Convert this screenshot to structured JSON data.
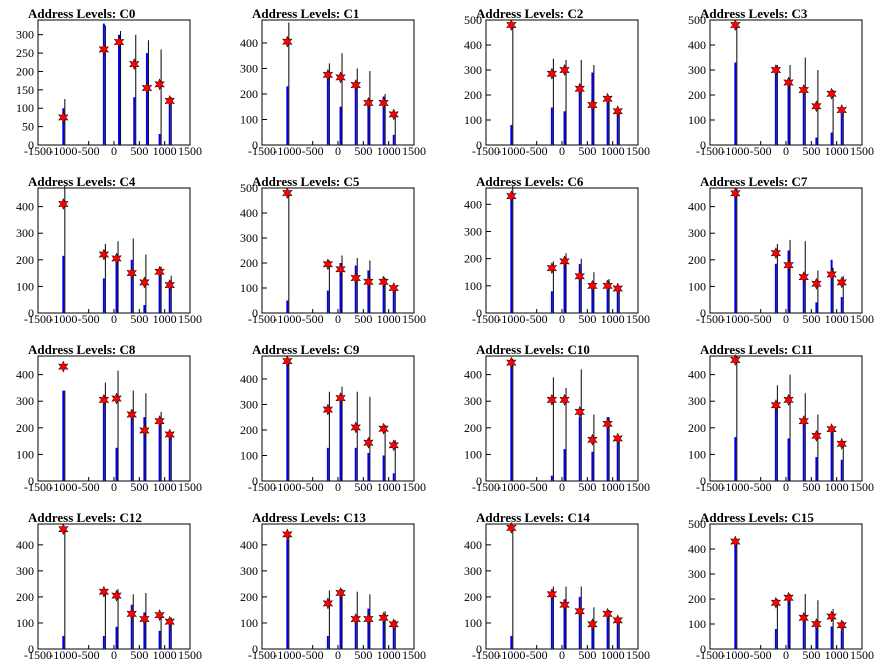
{
  "colors": {
    "bar": "#0000ee",
    "spike": "#000000",
    "marker": "#ff0000"
  },
  "xticks": [
    -1500,
    -1000,
    -500,
    0,
    500,
    1000,
    1500
  ],
  "chart_data": [
    {
      "type": "bar",
      "title": "Address Levels: C0",
      "xlim": [
        -1500,
        1500
      ],
      "ylim": [
        0,
        340
      ],
      "yticks": [
        0,
        50,
        100,
        150,
        200,
        250,
        300
      ],
      "x": [
        -1000,
        -200,
        100,
        400,
        650,
        900,
        1100
      ],
      "spike": [
        125,
        325,
        310,
        300,
        285,
        260,
        130
      ],
      "bar": [
        100,
        330,
        300,
        130,
        250,
        30,
        125
      ],
      "marker": [
        75,
        260,
        280,
        220,
        155,
        165,
        120
      ]
    },
    {
      "type": "bar",
      "title": "Address Levels: C1",
      "xlim": [
        -1500,
        1500
      ],
      "ylim": [
        0,
        490
      ],
      "yticks": [
        0,
        100,
        200,
        300,
        400
      ],
      "x": [
        -1000,
        -200,
        50,
        350,
        600,
        900,
        1100
      ],
      "spike": [
        480,
        320,
        360,
        300,
        290,
        200,
        125
      ],
      "bar": [
        230,
        280,
        150,
        240,
        150,
        190,
        40
      ],
      "marker": [
        405,
        275,
        265,
        235,
        165,
        165,
        120
      ]
    },
    {
      "type": "bar",
      "title": "Address Levels: C2",
      "xlim": [
        -1500,
        1500
      ],
      "ylim": [
        0,
        500
      ],
      "yticks": [
        0,
        100,
        200,
        300,
        400,
        500
      ],
      "x": [
        -1000,
        -200,
        50,
        350,
        600,
        900,
        1100
      ],
      "spike": [
        480,
        345,
        340,
        340,
        320,
        195,
        140
      ],
      "bar": [
        80,
        150,
        135,
        240,
        290,
        185,
        125
      ],
      "marker": [
        480,
        285,
        300,
        225,
        160,
        185,
        135
      ]
    },
    {
      "type": "bar",
      "title": "Address Levels: C3",
      "xlim": [
        -1500,
        1500
      ],
      "ylim": [
        0,
        500
      ],
      "yticks": [
        0,
        100,
        200,
        300,
        400,
        500
      ],
      "x": [
        -1000,
        -200,
        50,
        350,
        600,
        900,
        1100
      ],
      "spike": [
        480,
        320,
        320,
        350,
        300,
        220,
        140
      ],
      "bar": [
        330,
        300,
        250,
        225,
        30,
        50,
        125
      ],
      "marker": [
        480,
        300,
        250,
        220,
        155,
        205,
        140
      ]
    },
    {
      "type": "bar",
      "title": "Address Levels: C4",
      "xlim": [
        -1500,
        1500
      ],
      "ylim": [
        0,
        470
      ],
      "yticks": [
        0,
        100,
        200,
        300,
        400
      ],
      "x": [
        -1000,
        -200,
        50,
        350,
        600,
        900,
        1100
      ],
      "spike": [
        480,
        260,
        270,
        280,
        220,
        175,
        140
      ],
      "bar": [
        215,
        130,
        220,
        200,
        30,
        150,
        120
      ],
      "marker": [
        410,
        220,
        205,
        150,
        115,
        155,
        105
      ]
    },
    {
      "type": "bar",
      "title": "Address Levels: C5",
      "xlim": [
        -1500,
        1500
      ],
      "ylim": [
        0,
        500
      ],
      "yticks": [
        0,
        100,
        200,
        300,
        400,
        500
      ],
      "x": [
        -1000,
        -200,
        50,
        350,
        600,
        900,
        1100
      ],
      "spike": [
        480,
        210,
        230,
        220,
        210,
        140,
        110
      ],
      "bar": [
        50,
        90,
        200,
        190,
        170,
        145,
        100
      ],
      "marker": [
        480,
        195,
        175,
        140,
        125,
        125,
        100
      ]
    },
    {
      "type": "bar",
      "title": "Address Levels: C6",
      "xlim": [
        -1500,
        1500
      ],
      "ylim": [
        0,
        460
      ],
      "yticks": [
        0,
        100,
        200,
        300,
        400
      ],
      "x": [
        -1000,
        -200,
        50,
        350,
        600,
        900,
        1100
      ],
      "spike": [
        470,
        190,
        220,
        200,
        150,
        125,
        100
      ],
      "bar": [
        430,
        80,
        200,
        180,
        110,
        120,
        90
      ],
      "marker": [
        430,
        165,
        190,
        135,
        100,
        100,
        90
      ]
    },
    {
      "type": "bar",
      "title": "Address Levels: C7",
      "xlim": [
        -1500,
        1500
      ],
      "ylim": [
        0,
        470
      ],
      "yticks": [
        0,
        100,
        200,
        300,
        400
      ],
      "x": [
        -1000,
        -200,
        50,
        350,
        600,
        900,
        1100
      ],
      "spike": [
        470,
        260,
        275,
        270,
        160,
        170,
        140
      ],
      "bar": [
        445,
        185,
        235,
        140,
        40,
        200,
        60
      ],
      "marker": [
        450,
        225,
        180,
        135,
        110,
        145,
        115
      ]
    },
    {
      "type": "bar",
      "title": "Address Levels: C8",
      "xlim": [
        -1500,
        1500
      ],
      "ylim": [
        0,
        470
      ],
      "yticks": [
        0,
        100,
        200,
        300,
        400
      ],
      "x": [
        -1000,
        -200,
        50,
        350,
        600,
        900,
        1100
      ],
      "spike": [
        340,
        370,
        415,
        340,
        330,
        260,
        175
      ],
      "bar": [
        340,
        320,
        125,
        265,
        240,
        220,
        170
      ],
      "marker": [
        430,
        305,
        310,
        250,
        190,
        225,
        175
      ]
    },
    {
      "type": "bar",
      "title": "Address Levels: C9",
      "xlim": [
        -1500,
        1500
      ],
      "ylim": [
        0,
        490
      ],
      "yticks": [
        0,
        100,
        200,
        300,
        400
      ],
      "x": [
        -1000,
        -200,
        50,
        350,
        600,
        900,
        1100
      ],
      "spike": [
        480,
        350,
        370,
        350,
        330,
        220,
        160
      ],
      "bar": [
        460,
        130,
        330,
        130,
        110,
        100,
        30
      ],
      "marker": [
        470,
        280,
        325,
        210,
        150,
        205,
        140
      ]
    },
    {
      "type": "bar",
      "title": "Address Levels: C10",
      "xlim": [
        -1500,
        1500
      ],
      "ylim": [
        0,
        470
      ],
      "yticks": [
        0,
        100,
        200,
        300,
        400
      ],
      "x": [
        -1000,
        -200,
        50,
        350,
        600,
        900,
        1100
      ],
      "spike": [
        460,
        390,
        350,
        420,
        250,
        240,
        160
      ],
      "bar": [
        440,
        20,
        120,
        240,
        110,
        240,
        160
      ],
      "marker": [
        445,
        305,
        305,
        260,
        155,
        215,
        160
      ]
    },
    {
      "type": "bar",
      "title": "Address Levels: C11",
      "xlim": [
        -1500,
        1500
      ],
      "ylim": [
        0,
        470
      ],
      "yticks": [
        0,
        100,
        200,
        300,
        400
      ],
      "x": [
        -1000,
        -200,
        50,
        350,
        600,
        900,
        1100
      ],
      "spike": [
        470,
        360,
        400,
        330,
        250,
        200,
        150
      ],
      "bar": [
        165,
        300,
        160,
        230,
        90,
        190,
        80
      ],
      "marker": [
        455,
        285,
        305,
        225,
        170,
        195,
        140
      ]
    },
    {
      "type": "bar",
      "title": "Address Levels: C12",
      "xlim": [
        -1500,
        1500
      ],
      "ylim": [
        0,
        480
      ],
      "yticks": [
        0,
        100,
        200,
        300,
        400
      ],
      "x": [
        -1000,
        -200,
        50,
        350,
        600,
        900,
        1100
      ],
      "spike": [
        470,
        230,
        230,
        210,
        215,
        140,
        120
      ],
      "bar": [
        50,
        50,
        85,
        170,
        140,
        70,
        115
      ],
      "marker": [
        460,
        220,
        205,
        135,
        115,
        130,
        105
      ]
    },
    {
      "type": "bar",
      "title": "Address Levels: C13",
      "xlim": [
        -1500,
        1500
      ],
      "ylim": [
        0,
        480
      ],
      "yticks": [
        0,
        100,
        200,
        300,
        400
      ],
      "x": [
        -1000,
        -200,
        50,
        350,
        600,
        900,
        1100
      ],
      "spike": [
        450,
        225,
        230,
        220,
        210,
        145,
        110
      ],
      "bar": [
        420,
        50,
        200,
        110,
        155,
        120,
        100
      ],
      "marker": [
        440,
        175,
        215,
        115,
        115,
        120,
        95
      ]
    },
    {
      "type": "bar",
      "title": "Address Levels: C14",
      "xlim": [
        -1500,
        1500
      ],
      "ylim": [
        0,
        480
      ],
      "yticks": [
        0,
        100,
        200,
        300,
        400
      ],
      "x": [
        -1000,
        -200,
        50,
        350,
        600,
        900,
        1100
      ],
      "spike": [
        470,
        240,
        240,
        240,
        160,
        150,
        120
      ],
      "bar": [
        50,
        210,
        190,
        200,
        80,
        120,
        110
      ],
      "marker": [
        465,
        210,
        170,
        145,
        95,
        135,
        110
      ]
    },
    {
      "type": "bar",
      "title": "Address Levels: C15",
      "xlim": [
        -1500,
        1500
      ],
      "ylim": [
        0,
        500
      ],
      "yticks": [
        0,
        100,
        200,
        300,
        400,
        500
      ],
      "x": [
        -1000,
        -200,
        50,
        350,
        600,
        900,
        1100
      ],
      "spike": [
        440,
        200,
        220,
        220,
        195,
        160,
        110
      ],
      "bar": [
        420,
        80,
        205,
        115,
        100,
        90,
        75
      ],
      "marker": [
        430,
        185,
        205,
        125,
        100,
        130,
        95
      ]
    }
  ]
}
